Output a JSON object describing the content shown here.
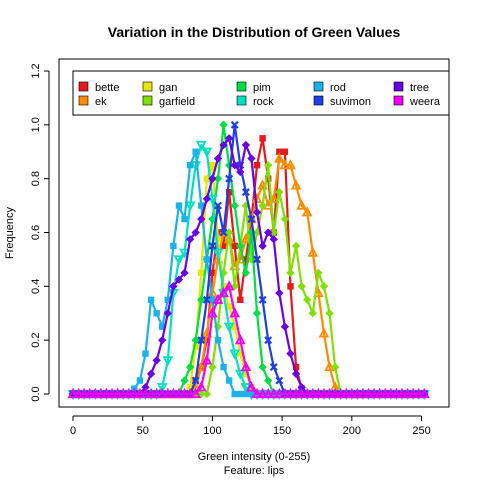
{
  "chart_data": {
    "type": "line",
    "title": "Variation in the Distribution of Green Values",
    "xlabel": "Green  intensity (0-255)",
    "xlabel_sub": "Feature: lips",
    "ylabel": "Frequency",
    "xlim": [
      0,
      255
    ],
    "ylim": [
      0,
      1.2
    ],
    "x_ticks": [
      "0",
      "50",
      "100",
      "150",
      "200",
      "250"
    ],
    "y_ticks": [
      "0.0",
      "0.2",
      "0.4",
      "0.6",
      "0.8",
      "1.0",
      "1.2"
    ],
    "legend_position": "top",
    "series": [
      {
        "name": "bette",
        "color": "#E41A1C",
        "marker": "square",
        "points": [
          [
            0,
            0
          ],
          [
            80,
            0
          ],
          [
            84,
            0.02
          ],
          [
            88,
            0.05
          ],
          [
            92,
            0.1
          ],
          [
            96,
            0.2
          ],
          [
            100,
            0.45
          ],
          [
            104,
            0.6
          ],
          [
            108,
            0.55
          ],
          [
            112,
            0.75
          ],
          [
            116,
            0.55
          ],
          [
            120,
            0.35
          ],
          [
            124,
            0.5
          ],
          [
            128,
            0.65
          ],
          [
            132,
            0.85
          ],
          [
            136,
            0.95
          ],
          [
            140,
            0.8
          ],
          [
            144,
            0.6
          ],
          [
            148,
            0.9
          ],
          [
            152,
            0.9
          ],
          [
            156,
            0.4
          ],
          [
            160,
            0.1
          ],
          [
            164,
            0.02
          ],
          [
            168,
            0
          ],
          [
            255,
            0
          ]
        ]
      },
      {
        "name": "ek",
        "color": "#FF8C00",
        "marker": "triangle-up",
        "points": [
          [
            0,
            0
          ],
          [
            86,
            0
          ],
          [
            90,
            0.05
          ],
          [
            94,
            0.15
          ],
          [
            98,
            0.3
          ],
          [
            102,
            0.45
          ],
          [
            106,
            0.55
          ],
          [
            110,
            0.65
          ],
          [
            114,
            0.5
          ],
          [
            118,
            0.45
          ],
          [
            122,
            0.55
          ],
          [
            126,
            0.6
          ],
          [
            130,
            0.7
          ],
          [
            134,
            0.75
          ],
          [
            138,
            0.8
          ],
          [
            142,
            0.6
          ],
          [
            146,
            0.85
          ],
          [
            150,
            0.9
          ],
          [
            154,
            0.8
          ],
          [
            158,
            0.9
          ],
          [
            162,
            0.65
          ],
          [
            166,
            0.75
          ],
          [
            170,
            0.6
          ],
          [
            174,
            0.45
          ],
          [
            178,
            0.3
          ],
          [
            182,
            0.15
          ],
          [
            186,
            0.05
          ],
          [
            190,
            0
          ],
          [
            255,
            0
          ]
        ]
      },
      {
        "name": "gan",
        "color": "#E6E600",
        "marker": "square",
        "points": [
          [
            0,
            0
          ],
          [
            82,
            0
          ],
          [
            86,
            0.05
          ],
          [
            90,
            0.3
          ],
          [
            94,
            0.6
          ],
          [
            98,
            1.0
          ],
          [
            102,
            0.7
          ],
          [
            106,
            0.45
          ],
          [
            110,
            0.35
          ],
          [
            114,
            0.3
          ],
          [
            118,
            0.2
          ],
          [
            122,
            0.1
          ],
          [
            126,
            0.05
          ],
          [
            130,
            0
          ],
          [
            255,
            0
          ]
        ]
      },
      {
        "name": "garfield",
        "color": "#7FE000",
        "marker": "diamond",
        "points": [
          [
            0,
            0
          ],
          [
            96,
            0
          ],
          [
            100,
            0.1
          ],
          [
            104,
            0.25
          ],
          [
            108,
            0.45
          ],
          [
            112,
            0.6
          ],
          [
            116,
            0.4
          ],
          [
            120,
            0.55
          ],
          [
            124,
            0.7
          ],
          [
            128,
            0.5
          ],
          [
            132,
            0.6
          ],
          [
            136,
            0.7
          ],
          [
            140,
            0.85
          ],
          [
            144,
            0.6
          ],
          [
            148,
            0.75
          ],
          [
            152,
            0.65
          ],
          [
            156,
            0.45
          ],
          [
            160,
            0.55
          ],
          [
            164,
            0.4
          ],
          [
            168,
            0.35
          ],
          [
            172,
            0.3
          ],
          [
            176,
            0.45
          ],
          [
            180,
            0.4
          ],
          [
            184,
            0.3
          ],
          [
            188,
            0.1
          ],
          [
            190,
            0
          ],
          [
            255,
            0
          ]
        ]
      },
      {
        "name": "pim",
        "color": "#00DD44",
        "marker": "diamond",
        "points": [
          [
            0,
            0
          ],
          [
            76,
            0
          ],
          [
            80,
            0.05
          ],
          [
            84,
            0.1
          ],
          [
            88,
            0.2
          ],
          [
            92,
            0.35
          ],
          [
            96,
            0.5
          ],
          [
            100,
            0.65
          ],
          [
            104,
            0.8
          ],
          [
            108,
            1.0
          ],
          [
            112,
            0.85
          ],
          [
            116,
            0.7
          ],
          [
            120,
            0.55
          ],
          [
            124,
            0.45
          ],
          [
            128,
            0.6
          ],
          [
            132,
            0.3
          ],
          [
            136,
            0.1
          ],
          [
            140,
            0.05
          ],
          [
            144,
            0
          ],
          [
            255,
            0
          ]
        ]
      },
      {
        "name": "rock",
        "color": "#00E0C0",
        "marker": "triangle-down",
        "points": [
          [
            0,
            0
          ],
          [
            62,
            0
          ],
          [
            66,
            0.05
          ],
          [
            70,
            0.2
          ],
          [
            74,
            0.55
          ],
          [
            78,
            0.45
          ],
          [
            82,
            0.6
          ],
          [
            86,
            0.8
          ],
          [
            90,
            0.9
          ],
          [
            94,
            0.95
          ],
          [
            98,
            0.85
          ],
          [
            102,
            0.6
          ],
          [
            106,
            0.45
          ],
          [
            110,
            0.3
          ],
          [
            114,
            0.2
          ],
          [
            118,
            0.1
          ],
          [
            122,
            0.05
          ],
          [
            126,
            0
          ],
          [
            255,
            0
          ]
        ]
      },
      {
        "name": "rod",
        "color": "#1AB2E8",
        "marker": "square",
        "points": [
          [
            0,
            0
          ],
          [
            40,
            0
          ],
          [
            44,
            0.02
          ],
          [
            48,
            0.05
          ],
          [
            52,
            0.15
          ],
          [
            56,
            0.35
          ],
          [
            60,
            0.3
          ],
          [
            64,
            0.25
          ],
          [
            68,
            0.35
          ],
          [
            72,
            0.55
          ],
          [
            76,
            0.7
          ],
          [
            80,
            0.65
          ],
          [
            84,
            0.85
          ],
          [
            88,
            0.9
          ],
          [
            92,
            0.7
          ],
          [
            96,
            0.5
          ],
          [
            100,
            0.35
          ],
          [
            104,
            0.2
          ],
          [
            108,
            0.1
          ],
          [
            112,
            0.05
          ],
          [
            116,
            0
          ],
          [
            255,
            0
          ]
        ]
      },
      {
        "name": "suvimon",
        "color": "#1F3FE0",
        "marker": "x",
        "points": [
          [
            0,
            0
          ],
          [
            84,
            0
          ],
          [
            88,
            0.05
          ],
          [
            92,
            0.2
          ],
          [
            96,
            0.35
          ],
          [
            100,
            0.55
          ],
          [
            104,
            0.7
          ],
          [
            108,
            0.6
          ],
          [
            112,
            0.8
          ],
          [
            116,
            1.0
          ],
          [
            120,
            0.85
          ],
          [
            124,
            0.75
          ],
          [
            128,
            0.65
          ],
          [
            132,
            0.5
          ],
          [
            136,
            0.35
          ],
          [
            140,
            0.2
          ],
          [
            144,
            0.1
          ],
          [
            148,
            0.05
          ],
          [
            152,
            0
          ],
          [
            255,
            0
          ]
        ]
      },
      {
        "name": "tree",
        "color": "#6B00E0",
        "marker": "diamond",
        "points": [
          [
            0,
            0
          ],
          [
            50,
            0
          ],
          [
            54,
            0.05
          ],
          [
            58,
            0.1
          ],
          [
            62,
            0.15
          ],
          [
            66,
            0.25
          ],
          [
            70,
            0.35
          ],
          [
            74,
            0.45
          ],
          [
            78,
            0.4
          ],
          [
            82,
            0.5
          ],
          [
            86,
            0.65
          ],
          [
            90,
            0.55
          ],
          [
            94,
            0.75
          ],
          [
            98,
            0.7
          ],
          [
            102,
            0.9
          ],
          [
            106,
            0.85
          ],
          [
            110,
            1.0
          ],
          [
            114,
            0.9
          ],
          [
            118,
            0.8
          ],
          [
            122,
            0.85
          ],
          [
            126,
            1.0
          ],
          [
            130,
            0.75
          ],
          [
            134,
            0.6
          ],
          [
            138,
            0.5
          ],
          [
            142,
            0.7
          ],
          [
            146,
            0.45
          ],
          [
            150,
            0.3
          ],
          [
            154,
            0.2
          ],
          [
            158,
            0.1
          ],
          [
            162,
            0.05
          ],
          [
            166,
            0
          ],
          [
            255,
            0
          ]
        ]
      },
      {
        "name": "weera",
        "color": "#F000F0",
        "marker": "triangle-up",
        "points": [
          [
            0,
            0
          ],
          [
            90,
            0
          ],
          [
            94,
            0.05
          ],
          [
            98,
            0.2
          ],
          [
            102,
            0.4
          ],
          [
            106,
            0.3
          ],
          [
            110,
            0.45
          ],
          [
            114,
            0.35
          ],
          [
            118,
            0.25
          ],
          [
            122,
            0.15
          ],
          [
            126,
            0.05
          ],
          [
            130,
            0
          ],
          [
            255,
            0
          ]
        ]
      }
    ]
  }
}
